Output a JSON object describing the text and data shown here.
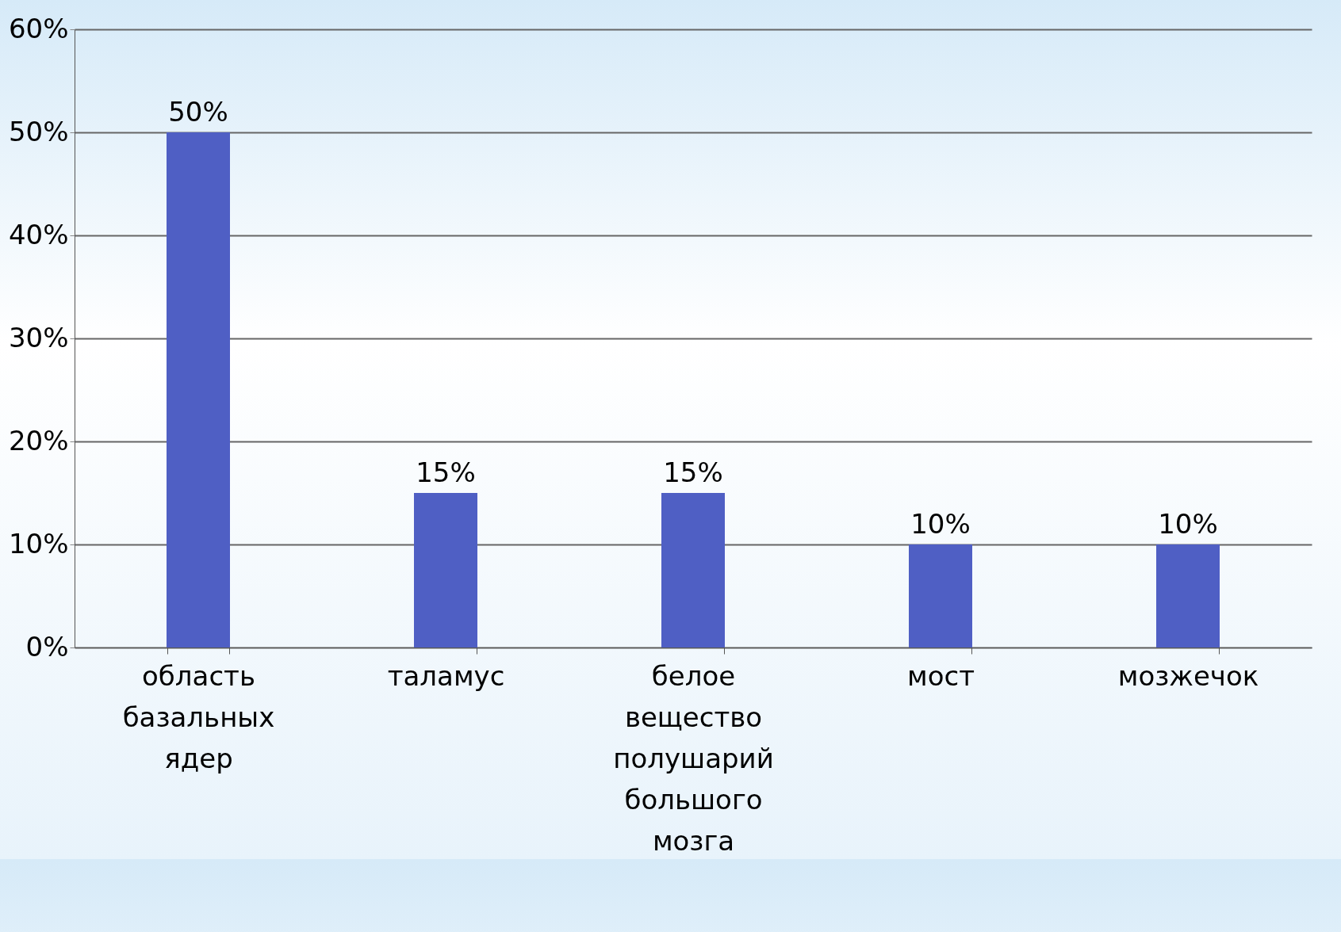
{
  "chart_data": {
    "type": "bar",
    "categories": [
      "область базальных ядер",
      "таламус",
      "белое вещество полушарий большого мозга",
      "мост",
      "мозжечок"
    ],
    "values": [
      50,
      15,
      15,
      10,
      10
    ],
    "value_labels": [
      "50%",
      "15%",
      "15%",
      "10%",
      "10%"
    ],
    "color": "#4f5fc4",
    "ylim": [
      0,
      60
    ],
    "yticks": [
      {
        "value": 0,
        "label": "0%"
      },
      {
        "value": 10,
        "label": "10%"
      },
      {
        "value": 20,
        "label": "20%"
      },
      {
        "value": 30,
        "label": "30%"
      },
      {
        "value": 40,
        "label": "40%"
      },
      {
        "value": 50,
        "label": "50%"
      },
      {
        "value": 60,
        "label": "60%"
      }
    ],
    "grid": "y"
  }
}
